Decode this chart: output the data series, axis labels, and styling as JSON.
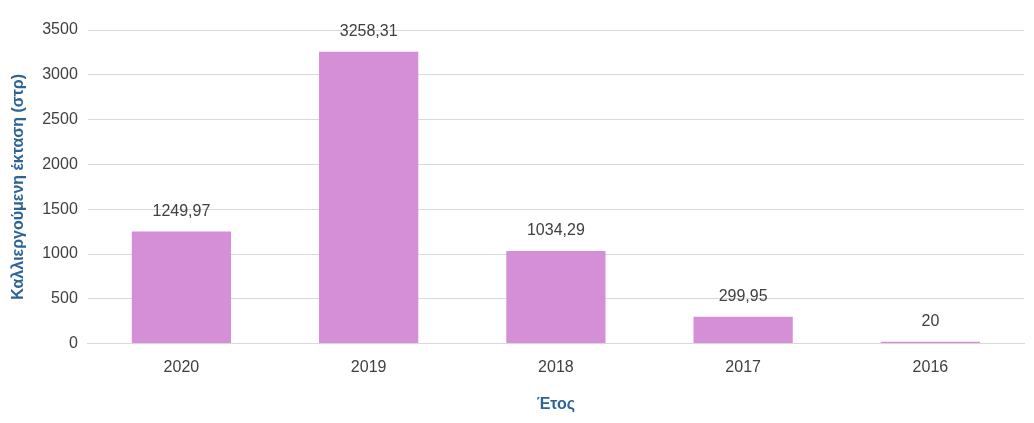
{
  "chart_data": {
    "type": "bar",
    "xlabel": "Έτος",
    "ylabel": "Καλλιεργούμενη έκταση (στρ)",
    "categories": [
      "2020",
      "2019",
      "2018",
      "2017",
      "2016"
    ],
    "values": [
      1249.97,
      3258.31,
      1034.29,
      299.95,
      20
    ],
    "value_labels": [
      "1249,97",
      "3258,31",
      "1034,29",
      "299,95",
      "20"
    ],
    "color": "#d48fd6",
    "ylim": [
      0,
      3500
    ],
    "yticks": [
      0,
      500,
      1000,
      1500,
      2000,
      2500,
      3000,
      3500
    ],
    "grid": "y",
    "legend": false
  }
}
